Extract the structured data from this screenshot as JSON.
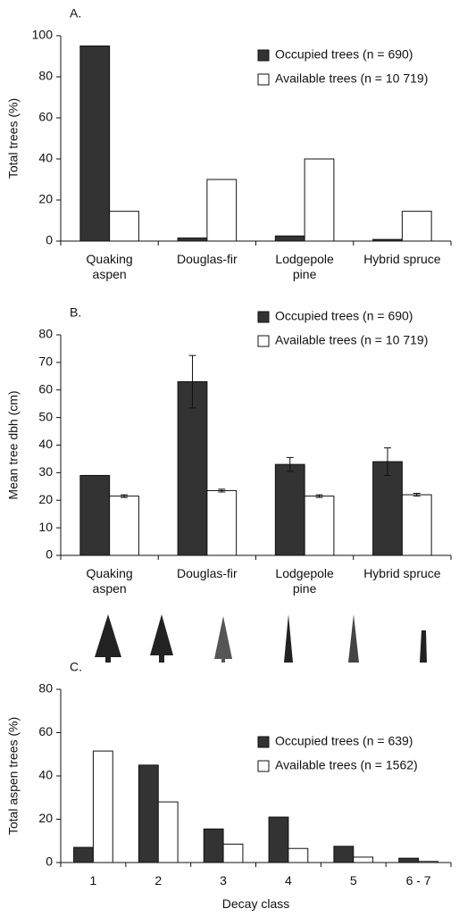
{
  "chart_data": [
    {
      "type": "bar",
      "panel_label": "A.",
      "y_label": "Total trees (%)",
      "categories": [
        "Quaking aspen",
        "Douglas-fir",
        "Lodgepole pine",
        "Hybrid spruce"
      ],
      "series": [
        {
          "name": "Occupied trees (n = 690)",
          "color": "#333333",
          "values": [
            95,
            1.5,
            2.5,
            0.8
          ]
        },
        {
          "name": "Available trees (n = 10 719)",
          "color": "#ffffff",
          "values": [
            14.5,
            30,
            40,
            14.5
          ]
        }
      ],
      "ylim": [
        0,
        100
      ],
      "yticks": [
        0,
        20,
        40,
        60,
        80,
        100
      ]
    },
    {
      "type": "bar",
      "panel_label": "B.",
      "y_label": "Mean tree dbh (cm)",
      "categories": [
        "Quaking aspen",
        "Douglas-fir",
        "Lodgepole pine",
        "Hybrid spruce"
      ],
      "series": [
        {
          "name": "Occupied trees (n = 690)",
          "color": "#333333",
          "values": [
            29,
            63,
            33,
            34
          ],
          "errors": [
            0,
            9.5,
            2.5,
            5
          ]
        },
        {
          "name": "Available trees (n = 10 719)",
          "color": "#ffffff",
          "values": [
            21.5,
            23.5,
            21.5,
            22
          ],
          "errors": [
            0.5,
            0.5,
            0.5,
            0.5
          ]
        }
      ],
      "ylim": [
        0,
        80
      ],
      "yticks": [
        0,
        10,
        20,
        30,
        40,
        50,
        60,
        70,
        80
      ]
    },
    {
      "type": "bar",
      "panel_label": "C.",
      "y_label": "Total aspen trees (%)",
      "x_label": "Decay class",
      "categories": [
        "1",
        "2",
        "3",
        "4",
        "5",
        "6 - 7"
      ],
      "series": [
        {
          "name": "Occupied trees (n = 639)",
          "color": "#333333",
          "values": [
            7,
            45,
            15.5,
            21,
            7.5,
            2
          ]
        },
        {
          "name": "Available trees (n = 1562)",
          "color": "#ffffff",
          "values": [
            51.5,
            28,
            8.5,
            6.5,
            2.5,
            0.5
          ]
        }
      ],
      "ylim": [
        0,
        80
      ],
      "yticks": [
        0,
        20,
        40,
        60,
        80
      ]
    }
  ]
}
